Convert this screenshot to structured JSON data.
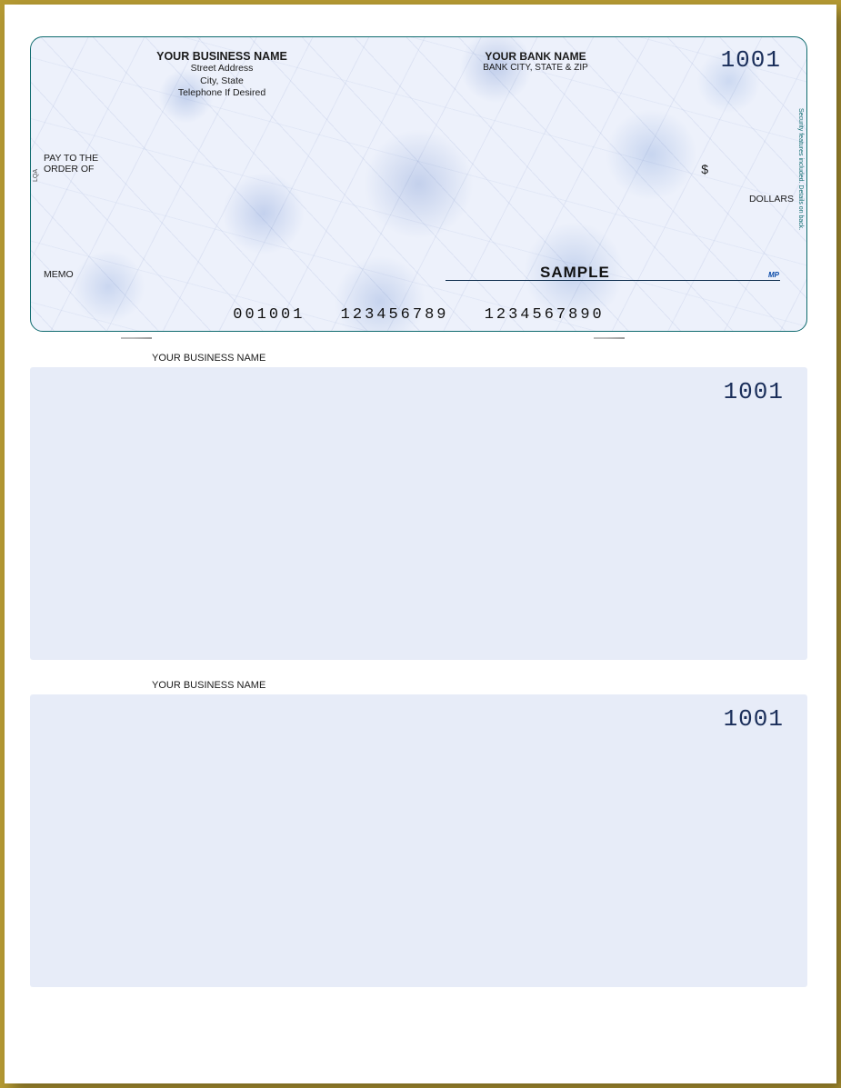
{
  "check": {
    "business": {
      "name": "YOUR BUSINESS NAME",
      "address": "Street Address",
      "city_state": "City, State",
      "phone": "Telephone If Desired"
    },
    "bank": {
      "name": "YOUR BANK NAME",
      "city_state_zip": "BANK CITY, STATE & ZIP"
    },
    "check_number": "1001",
    "pay_to_label_1": "PAY TO THE",
    "pay_to_label_2": "ORDER OF",
    "dollar_sign": "$",
    "dollars_label": "DOLLARS",
    "memo_label": "MEMO",
    "sample_text": "SAMPLE",
    "mp_mark": "MP",
    "security_text": "Security features included. Details on back.",
    "side_mark": "LQA",
    "micr": {
      "aux": "001001",
      "routing": "123456789",
      "account": "1234567890"
    },
    "colors": {
      "border": "#0f6b6f",
      "check_number": "#1a2e5a",
      "marble_base": "#edf1fb",
      "stub_bg": "#e7ecf8",
      "page_bg": "#ffffff",
      "frame": "#b59a33"
    }
  },
  "stub1": {
    "business_name": "YOUR BUSINESS NAME",
    "number": "1001"
  },
  "stub2": {
    "business_name": "YOUR BUSINESS NAME",
    "number": "1001"
  }
}
